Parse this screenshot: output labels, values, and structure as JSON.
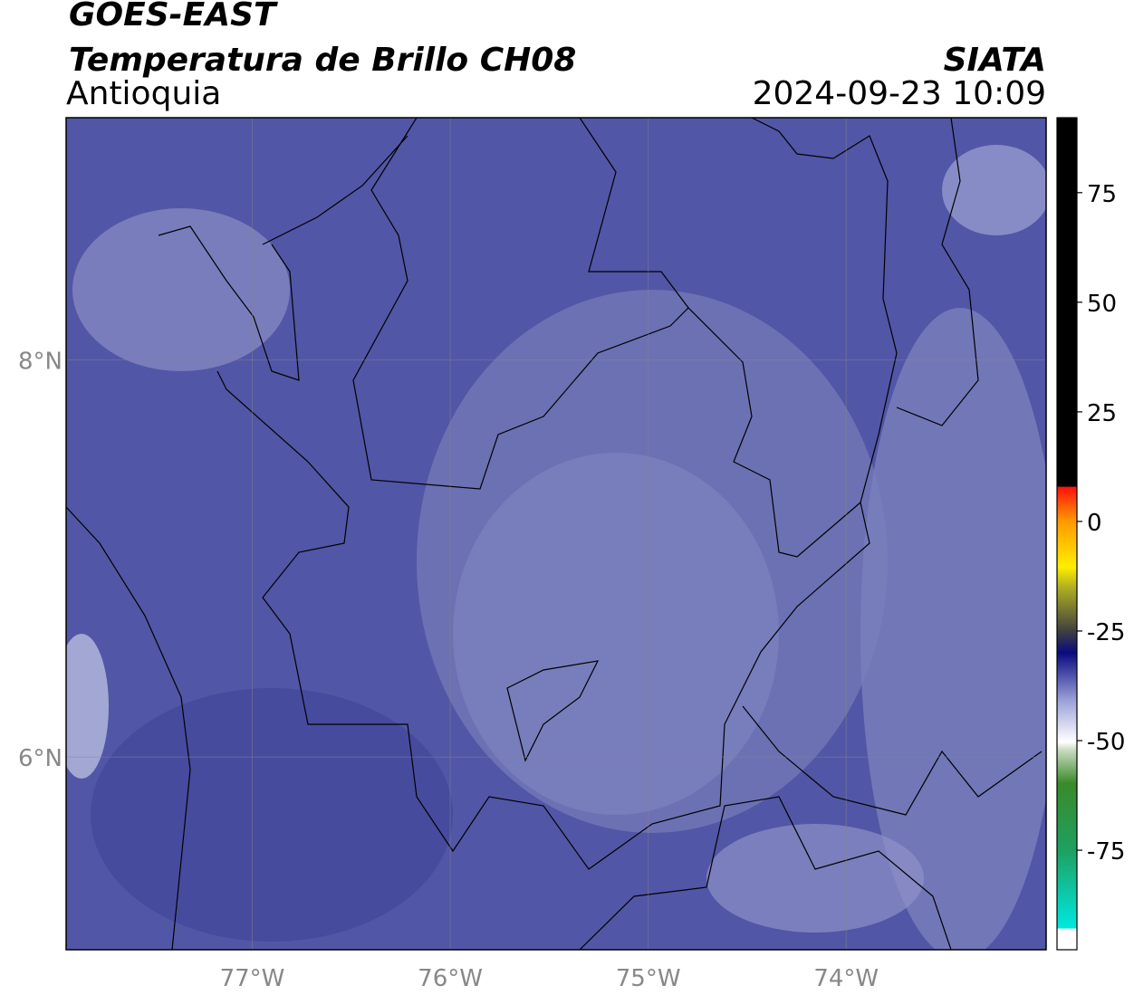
{
  "header": {
    "title": "GOES-EAST",
    "subtitle": "Temperatura de Brillo CH08",
    "region": "Antioquia",
    "source": "SIATA",
    "datetime": "2024-09-23 10:09"
  },
  "map": {
    "xlim": [
      -77.94,
      -72.99
    ],
    "ylim": [
      5.03,
      9.22
    ],
    "xticks": [
      {
        "value": -77,
        "label": "77°W"
      },
      {
        "value": -76,
        "label": "76°W"
      },
      {
        "value": -75,
        "label": "75°W"
      },
      {
        "value": -74,
        "label": "74°W"
      }
    ],
    "yticks": [
      {
        "value": 6,
        "label": "6°N"
      },
      {
        "value": 8,
        "label": "8°N"
      }
    ],
    "grid": true
  },
  "colorbar": {
    "lim": [
      -97.7,
      92.1
    ],
    "ticks": [
      -75,
      -50,
      -25,
      0,
      25,
      50,
      75
    ]
  }
}
